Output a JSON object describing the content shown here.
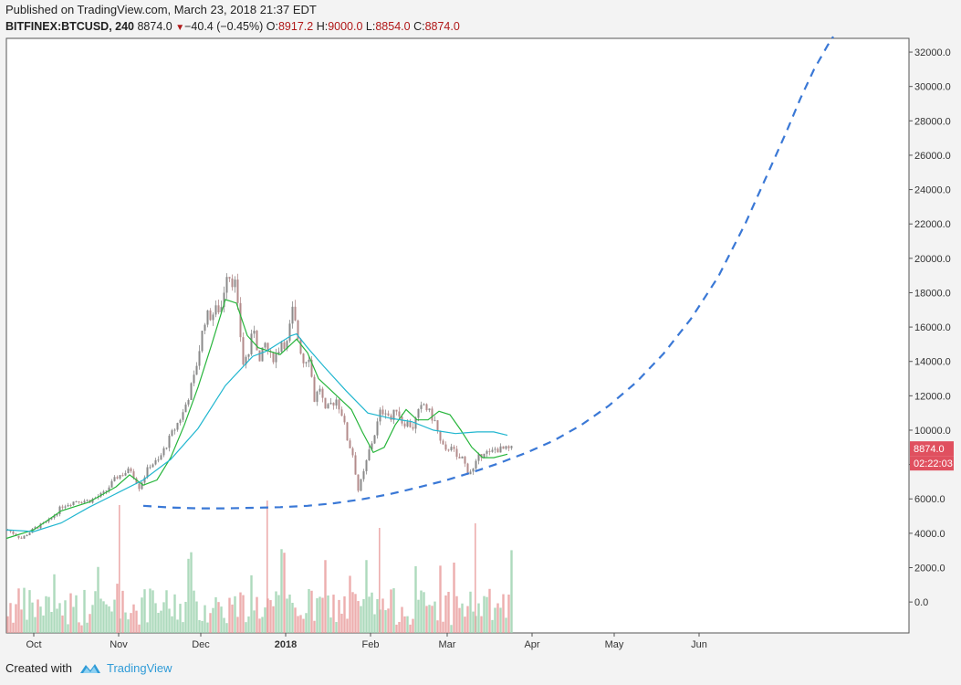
{
  "header": {
    "published": "Published on TradingView.com, March 23, 2018 21:37 EDT",
    "symbol": "BITFINEX:BTCUSD, 240",
    "last": "8874.0",
    "change": "−40.4 (−0.45%)",
    "open_label": "O:",
    "open": "8917.2",
    "high_label": "H:",
    "high": "9000.0",
    "low_label": "L:",
    "low": "8854.0",
    "close_label": "C:",
    "close": "8874.0"
  },
  "footer": {
    "created_with": "Created with",
    "brand": "TradingView"
  },
  "colors": {
    "candle_up": "#8a8a8a",
    "candle_down": "#b38b8b",
    "ma_fast": "#27b53b",
    "ma_slow": "#20b6cf",
    "projection": "#3a78d6",
    "volume_up": "#9fd3b2",
    "volume_down": "#eaa0a0",
    "price_badge": "#e0505f"
  },
  "chart_data": {
    "type": "line",
    "title": "BITFINEX:BTCUSD, 240",
    "xlabel": "",
    "ylabel": "",
    "ylim": [
      -1800,
      32800
    ],
    "y_ticks": [
      "32000.0",
      "30000.0",
      "28000.0",
      "26000.0",
      "24000.0",
      "22000.0",
      "20000.0",
      "18000.0",
      "16000.0",
      "14000.0",
      "12000.0",
      "10000.0",
      "8000.0",
      "6000.0",
      "4000.0",
      "2000.0",
      "0.0"
    ],
    "y_tick_values": [
      32000,
      30000,
      28000,
      26000,
      24000,
      22000,
      20000,
      18000,
      16000,
      14000,
      12000,
      10000,
      8000,
      6000,
      4000,
      2000,
      0
    ],
    "x_ticks": [
      "Oct",
      "Nov",
      "Dec",
      "2018",
      "Feb",
      "Mar",
      "Apr",
      "May",
      "Jun"
    ],
    "x_tick_days": [
      10,
      41,
      71,
      102,
      133,
      161,
      192,
      222,
      253
    ],
    "last_price_label": "8874.0",
    "countdown_label": "02:22:03",
    "last_price_value": 8874,
    "series": [
      {
        "name": "BTCUSD price (approx.)",
        "x_days": [
          0,
          5,
          10,
          15,
          20,
          25,
          30,
          35,
          40,
          45,
          48,
          52,
          55,
          60,
          64,
          68,
          72,
          75,
          78,
          80,
          83,
          85,
          86,
          88,
          90,
          92,
          94,
          96,
          98,
          100,
          102,
          104,
          106,
          108,
          110,
          112,
          114,
          116,
          118,
          120,
          122,
          124,
          126,
          128,
          130,
          132,
          134,
          136,
          138,
          140,
          142,
          144,
          146,
          148,
          150,
          152,
          154,
          156,
          158,
          160,
          162,
          164,
          166,
          168,
          170,
          172,
          174,
          176,
          178,
          180,
          182,
          184
        ],
        "values": [
          4200,
          3700,
          4300,
          4700,
          5600,
          5900,
          5900,
          6300,
          7300,
          7700,
          6700,
          8000,
          8200,
          9800,
          11000,
          13000,
          16500,
          16800,
          17200,
          19300,
          18500,
          15500,
          13900,
          14500,
          16000,
          13900,
          15000,
          14200,
          14400,
          15200,
          15000,
          16900,
          15400,
          14000,
          14400,
          11800,
          12500,
          11000,
          11500,
          11800,
          11000,
          9500,
          8600,
          6500,
          7500,
          8800,
          9800,
          11000,
          11200,
          10600,
          11300,
          10500,
          10400,
          10200,
          11000,
          11500,
          11000,
          10500,
          9300,
          8700,
          9200,
          8300,
          8400,
          7600,
          7700,
          8400,
          8800,
          8600,
          8900,
          8874,
          8874,
          8874
        ]
      },
      {
        "name": "MA fast (green)",
        "x_days": [
          0,
          10,
          20,
          30,
          40,
          45,
          50,
          55,
          60,
          65,
          70,
          75,
          80,
          84,
          88,
          92,
          96,
          100,
          104,
          106,
          110,
          114,
          118,
          122,
          126,
          130,
          134,
          138,
          142,
          146,
          150,
          154,
          158,
          162,
          166,
          170,
          174,
          178,
          183
        ],
        "values": [
          3700,
          4200,
          5300,
          5800,
          6700,
          7400,
          6800,
          7100,
          8400,
          10300,
          12500,
          15000,
          17600,
          17400,
          15500,
          14800,
          14600,
          14400,
          15000,
          15300,
          14500,
          13000,
          12400,
          11800,
          11200,
          9900,
          8700,
          9000,
          10300,
          11200,
          10600,
          10600,
          11100,
          10900,
          10000,
          9000,
          8400,
          8400,
          8600
        ]
      },
      {
        "name": "MA slow (cyan)",
        "x_days": [
          0,
          10,
          20,
          30,
          40,
          50,
          60,
          70,
          80,
          90,
          95,
          100,
          104,
          106,
          110,
          116,
          124,
          132,
          140,
          148,
          156,
          164,
          172,
          178,
          183
        ],
        "values": [
          4200,
          4100,
          4600,
          5500,
          6300,
          7100,
          8300,
          10100,
          12600,
          14300,
          14600,
          15100,
          15500,
          15600,
          14800,
          13700,
          12300,
          11000,
          10700,
          10500,
          10000,
          9800,
          9900,
          9900,
          9700
        ]
      },
      {
        "name": "Projected curve (dashed)",
        "x_days": [
          50,
          60,
          70,
          80,
          90,
          100,
          110,
          120,
          130,
          140,
          150,
          160,
          170,
          180,
          190,
          200,
          210,
          220,
          230,
          240,
          250,
          260,
          270,
          278,
          285,
          290,
          295,
          300,
          302
        ],
        "values": [
          5600,
          5500,
          5450,
          5450,
          5480,
          5520,
          5600,
          5750,
          5980,
          6280,
          6650,
          7060,
          7540,
          8080,
          8690,
          9400,
          10300,
          11420,
          12780,
          14450,
          16470,
          18930,
          22060,
          24900,
          27400,
          29300,
          31000,
          32400,
          32900
        ]
      }
    ]
  }
}
